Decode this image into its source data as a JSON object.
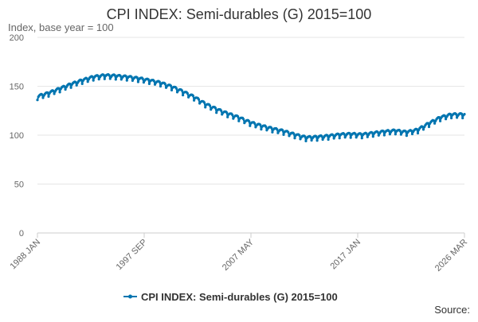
{
  "chart_data": {
    "type": "line",
    "title": "CPI INDEX: Semi-durables (G) 2015=100",
    "subtitle": "Index, base year = 100",
    "xlabel": "",
    "ylabel": "Index, base year = 100",
    "ylim": [
      0,
      200
    ],
    "y_ticks": [
      "0",
      "50",
      "100",
      "150",
      "200"
    ],
    "x_tick_labels": [
      "1988 JAN",
      "1997 SEP",
      "2007 MAY",
      "2017 JAN",
      "2026 MAR"
    ],
    "x_range": [
      "1988-01",
      "2026-03"
    ],
    "grid": true,
    "legend_position": "bottom",
    "source_label": "Source:",
    "colors": {
      "series": "#0075b0",
      "grid": "#e6e6e6",
      "axis": "#cccccc",
      "text": "#666666"
    },
    "series": [
      {
        "name": "CPI INDEX: Semi-durables (G) 2015=100",
        "frequency": "monthly",
        "annual_points": [
          [
            "1988-01",
            138.5
          ],
          [
            "1989-01",
            142.0
          ],
          [
            "1990-01",
            146.5
          ],
          [
            "1991-01",
            151.0
          ],
          [
            "1992-01",
            155.0
          ],
          [
            "1993-01",
            158.5
          ],
          [
            "1994-01",
            160.0
          ],
          [
            "1995-01",
            159.5
          ],
          [
            "1996-01",
            158.5
          ],
          [
            "1997-01",
            157.0
          ],
          [
            "1998-01",
            155.0
          ],
          [
            "1999-01",
            152.5
          ],
          [
            "2000-01",
            148.5
          ],
          [
            "2001-01",
            143.5
          ],
          [
            "2002-01",
            138.0
          ],
          [
            "2003-01",
            131.0
          ],
          [
            "2004-01",
            125.5
          ],
          [
            "2005-01",
            121.0
          ],
          [
            "2006-01",
            117.0
          ],
          [
            "2007-01",
            112.0
          ],
          [
            "2008-01",
            108.5
          ],
          [
            "2009-01",
            105.5
          ],
          [
            "2010-01",
            103.0
          ],
          [
            "2011-01",
            99.5
          ],
          [
            "2012-01",
            96.5
          ],
          [
            "2013-01",
            97.0
          ],
          [
            "2014-01",
            98.0
          ],
          [
            "2015-01",
            99.5
          ],
          [
            "2016-01",
            100.0
          ],
          [
            "2017-01",
            99.5
          ],
          [
            "2018-01",
            101.0
          ],
          [
            "2019-01",
            102.5
          ],
          [
            "2020-01",
            103.5
          ],
          [
            "2021-01",
            102.0
          ],
          [
            "2022-01",
            104.5
          ],
          [
            "2023-01",
            111.0
          ],
          [
            "2024-01",
            117.0
          ],
          [
            "2025-01",
            120.0
          ],
          [
            "2026-03",
            120.0
          ]
        ],
        "seasonal_swing": 2.5
      }
    ]
  }
}
